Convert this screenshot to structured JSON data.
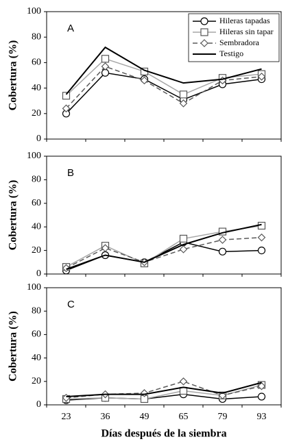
{
  "chart_data": [
    {
      "type": "line",
      "label": "A",
      "ylabel": "Cobertura (%)",
      "ylim": [
        0,
        100
      ],
      "yticks": [
        0,
        20,
        40,
        60,
        80,
        100
      ],
      "legend": "upper right",
      "series": [
        {
          "name": "Hileras tapadas",
          "color": "#000000",
          "marker": "circle",
          "dash": "solid",
          "values": [
            20,
            52,
            47,
            31,
            43,
            47
          ]
        },
        {
          "name": "Hileras sin tapar",
          "color": "#a6a6a6",
          "marker": "square",
          "dash": "solid",
          "values": [
            34,
            63,
            53,
            35,
            48,
            51
          ]
        },
        {
          "name": "Sembradora",
          "color": "#595959",
          "marker": "diamond",
          "dash": "dashed",
          "values": [
            24,
            57,
            46,
            28,
            46,
            49
          ]
        },
        {
          "name": "Testigo",
          "color": "#000000",
          "marker": "none",
          "dash": "solid",
          "values": [
            35,
            72,
            54,
            44,
            47,
            55
          ]
        }
      ]
    },
    {
      "type": "line",
      "label": "B",
      "ylabel": "Cobertura (%)",
      "ylim": [
        0,
        100
      ],
      "yticks": [
        0,
        20,
        40,
        60,
        80,
        100
      ],
      "series": [
        {
          "color": "#000000",
          "marker": "circle",
          "dash": "solid",
          "values": [
            3,
            16,
            10,
            27,
            19,
            20
          ]
        },
        {
          "color": "#a6a6a6",
          "marker": "square",
          "dash": "solid",
          "values": [
            6,
            24,
            9,
            30,
            36,
            41
          ]
        },
        {
          "color": "#595959",
          "marker": "diamond",
          "dash": "dashed",
          "values": [
            5,
            22,
            10,
            21,
            29,
            31
          ]
        },
        {
          "color": "#000000",
          "marker": "none",
          "dash": "solid",
          "values": [
            4,
            16,
            10,
            25,
            35,
            42
          ]
        }
      ]
    },
    {
      "type": "line",
      "label": "C",
      "ylabel": "Cobertura (%)",
      "xlabel": "Días después de la siembra",
      "ylim": [
        0,
        100
      ],
      "yticks": [
        0,
        20,
        40,
        60,
        80,
        100
      ],
      "categories": [
        "23",
        "36",
        "49",
        "65",
        "79",
        "93"
      ],
      "series": [
        {
          "color": "#000000",
          "marker": "circle",
          "dash": "solid",
          "values": [
            4,
            6,
            5,
            9,
            5,
            7
          ]
        },
        {
          "color": "#a6a6a6",
          "marker": "square",
          "dash": "solid",
          "values": [
            5,
            6,
            5,
            12,
            8,
            17
          ]
        },
        {
          "color": "#595959",
          "marker": "diamond",
          "dash": "dashed",
          "values": [
            6,
            9,
            10,
            20,
            8,
            16
          ]
        },
        {
          "color": "#000000",
          "marker": "none",
          "dash": "solid",
          "values": [
            7,
            9,
            9,
            15,
            10,
            19
          ]
        }
      ]
    }
  ]
}
